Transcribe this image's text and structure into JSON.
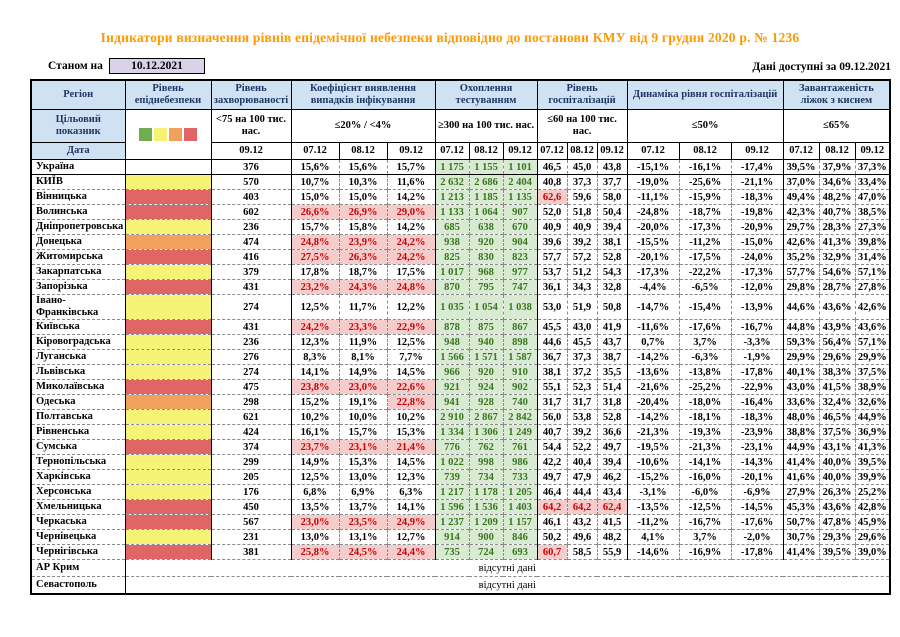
{
  "title": "Індикатори визначення рівнів епідемічної небезпеки відповідно до постанови КМУ від 9 грудня 2020 р. № 1236",
  "asof": {
    "label": "Станом на",
    "date": "10.12.2021"
  },
  "avail": {
    "label": "Дані доступні за",
    "date": "09.12.2021"
  },
  "header": {
    "region_label": "Регіон",
    "target_label": "Цільовий показник",
    "date_label": "Дата"
  },
  "legend": {
    "names": [
      "green-level",
      "yellow-level",
      "orange-level",
      "red-level"
    ],
    "colors": [
      "#6fad4e",
      "#f5f276",
      "#f2a15c",
      "#e06666"
    ]
  },
  "groups": [
    {
      "label": "Рівень епіднебезпеки"
    },
    {
      "label": "Рівень захворюваності",
      "target": "<75 на 100 тис. нас.",
      "dates": [
        "09.12"
      ]
    },
    {
      "label": "Коефіцієнт виявлення випадків інфікування",
      "target": "≤20% / <4%",
      "dates": [
        "07.12",
        "08.12",
        "09.12"
      ]
    },
    {
      "label": "Охоплення тестуванням",
      "target": "≥300 на 100 тис. нас.",
      "dates": [
        "07.12",
        "08.12",
        "09.12"
      ]
    },
    {
      "label": "Рівень госпіталізацій",
      "target": "≤60 на 100 тис. нас.",
      "dates": [
        "07.12",
        "08.12",
        "09.12"
      ]
    },
    {
      "label": "Динаміка рівня госпіталізацій",
      "target": "≤50%",
      "dates": [
        "07.12",
        "08.12",
        "09.12"
      ]
    },
    {
      "label": "Завантаженість ліжок з киснем",
      "target": "≤65%",
      "dates": [
        "07.12",
        "08.12",
        "09.12"
      ]
    }
  ],
  "rows": [
    {
      "name": "Україна",
      "level": "none",
      "incidence": "376",
      "detect": [
        "15,6%",
        "15,6%",
        "15,7%"
      ],
      "testing": [
        "1 175",
        "1 155",
        "1 101"
      ],
      "hosp": [
        "46,5",
        "45,0",
        "43,8"
      ],
      "dyn": [
        "-15,1%",
        "-16,1%",
        "-17,4%"
      ],
      "beds": [
        "39,5%",
        "37,9%",
        "37,3%"
      ]
    },
    {
      "name": "КИЇВ",
      "level": "yellow",
      "incidence": "570",
      "detect": [
        "10,7%",
        "10,3%",
        "11,6%"
      ],
      "testing": [
        "2 632",
        "2 686",
        "2 404"
      ],
      "hosp": [
        "40,8",
        "37,3",
        "37,7"
      ],
      "dyn": [
        "-19,0%",
        "-25,6%",
        "-21,1%"
      ],
      "beds": [
        "37,0%",
        "34,6%",
        "33,4%"
      ]
    },
    {
      "name": "Вінницька",
      "level": "red",
      "incidence": "403",
      "detect": [
        "15,0%",
        "15,0%",
        "14,2%"
      ],
      "testing": [
        "1 213",
        "1 185",
        "1 135"
      ],
      "hosp": [
        "62,6",
        "59,6",
        "58,0"
      ],
      "hosp_hl": [
        true,
        false,
        false
      ],
      "dyn": [
        "-11,1%",
        "-15,9%",
        "-18,3%"
      ],
      "beds": [
        "49,4%",
        "48,2%",
        "47,0%"
      ]
    },
    {
      "name": "Волинська",
      "level": "red",
      "incidence": "602",
      "detect": [
        "26,6%",
        "26,9%",
        "29,0%"
      ],
      "detect_hl": [
        true,
        true,
        true
      ],
      "testing": [
        "1 133",
        "1 064",
        "907"
      ],
      "hosp": [
        "52,0",
        "51,8",
        "50,4"
      ],
      "dyn": [
        "-24,8%",
        "-18,7%",
        "-19,8%"
      ],
      "beds": [
        "42,3%",
        "40,7%",
        "38,5%"
      ]
    },
    {
      "name": "Дніпропетровська",
      "level": "yellow",
      "incidence": "236",
      "detect": [
        "15,7%",
        "15,8%",
        "14,2%"
      ],
      "testing": [
        "685",
        "638",
        "670"
      ],
      "hosp": [
        "40,9",
        "40,9",
        "39,4"
      ],
      "dyn": [
        "-20,0%",
        "-17,3%",
        "-20,9%"
      ],
      "beds": [
        "29,7%",
        "28,3%",
        "27,3%"
      ]
    },
    {
      "name": "Донецька",
      "level": "orange",
      "incidence": "474",
      "detect": [
        "24,8%",
        "23,9%",
        "24,2%"
      ],
      "detect_hl": [
        true,
        true,
        true
      ],
      "testing": [
        "938",
        "920",
        "904"
      ],
      "hosp": [
        "39,6",
        "39,2",
        "38,1"
      ],
      "dyn": [
        "-15,5%",
        "-11,2%",
        "-15,0%"
      ],
      "beds": [
        "42,6%",
        "41,3%",
        "39,8%"
      ]
    },
    {
      "name": "Житомирська",
      "level": "red",
      "incidence": "416",
      "detect": [
        "27,5%",
        "26,3%",
        "24,2%"
      ],
      "detect_hl": [
        true,
        true,
        true
      ],
      "testing": [
        "825",
        "830",
        "823"
      ],
      "hosp": [
        "57,7",
        "57,2",
        "52,8"
      ],
      "dyn": [
        "-20,1%",
        "-17,5%",
        "-24,0%"
      ],
      "beds": [
        "35,2%",
        "32,9%",
        "31,4%"
      ]
    },
    {
      "name": "Закарпатська",
      "level": "yellow",
      "incidence": "379",
      "detect": [
        "17,8%",
        "18,7%",
        "17,5%"
      ],
      "testing": [
        "1 017",
        "968",
        "977"
      ],
      "hosp": [
        "53,7",
        "51,2",
        "54,3"
      ],
      "dyn": [
        "-17,3%",
        "-22,2%",
        "-17,3%"
      ],
      "beds": [
        "57,7%",
        "54,6%",
        "57,1%"
      ]
    },
    {
      "name": "Запорізька",
      "level": "red",
      "incidence": "431",
      "detect": [
        "23,2%",
        "24,3%",
        "24,8%"
      ],
      "detect_hl": [
        true,
        true,
        true
      ],
      "testing": [
        "870",
        "795",
        "747"
      ],
      "hosp": [
        "36,1",
        "34,3",
        "32,8"
      ],
      "dyn": [
        "-4,4%",
        "-6,5%",
        "-12,0%"
      ],
      "beds": [
        "29,8%",
        "28,7%",
        "27,8%"
      ]
    },
    {
      "name": "Івано-Франківська",
      "level": "yellow",
      "incidence": "274",
      "detect": [
        "12,5%",
        "11,7%",
        "12,2%"
      ],
      "testing": [
        "1 035",
        "1 054",
        "1 038"
      ],
      "hosp": [
        "53,0",
        "51,9",
        "50,8"
      ],
      "dyn": [
        "-14,7%",
        "-15,4%",
        "-13,9%"
      ],
      "beds": [
        "44,6%",
        "43,6%",
        "42,6%"
      ]
    },
    {
      "name": "Київська",
      "level": "red",
      "incidence": "431",
      "detect": [
        "24,2%",
        "23,3%",
        "22,9%"
      ],
      "detect_hl": [
        true,
        true,
        true
      ],
      "testing": [
        "878",
        "875",
        "867"
      ],
      "hosp": [
        "45,5",
        "43,0",
        "41,9"
      ],
      "dyn": [
        "-11,6%",
        "-17,6%",
        "-16,7%"
      ],
      "beds": [
        "44,8%",
        "43,9%",
        "43,6%"
      ]
    },
    {
      "name": "Кіровоградська",
      "level": "yellow",
      "incidence": "236",
      "detect": [
        "12,3%",
        "11,9%",
        "12,5%"
      ],
      "testing": [
        "948",
        "940",
        "898"
      ],
      "hosp": [
        "44,6",
        "45,5",
        "43,7"
      ],
      "dyn": [
        "0,7%",
        "3,7%",
        "-3,3%"
      ],
      "beds": [
        "59,3%",
        "56,4%",
        "57,1%"
      ]
    },
    {
      "name": "Луганська",
      "level": "yellow",
      "incidence": "276",
      "detect": [
        "8,3%",
        "8,1%",
        "7,7%"
      ],
      "testing": [
        "1 566",
        "1 571",
        "1 587"
      ],
      "hosp": [
        "36,7",
        "37,3",
        "38,7"
      ],
      "dyn": [
        "-14,2%",
        "-6,3%",
        "-1,9%"
      ],
      "beds": [
        "29,9%",
        "29,6%",
        "29,9%"
      ]
    },
    {
      "name": "Львівська",
      "level": "yellow",
      "incidence": "274",
      "detect": [
        "14,1%",
        "14,9%",
        "14,5%"
      ],
      "testing": [
        "966",
        "920",
        "910"
      ],
      "hosp": [
        "38,1",
        "37,2",
        "35,5"
      ],
      "dyn": [
        "-13,6%",
        "-13,8%",
        "-17,8%"
      ],
      "beds": [
        "40,1%",
        "38,3%",
        "37,5%"
      ]
    },
    {
      "name": "Миколаївська",
      "level": "red",
      "incidence": "475",
      "detect": [
        "23,8%",
        "23,0%",
        "22,6%"
      ],
      "detect_hl": [
        true,
        true,
        true
      ],
      "testing": [
        "921",
        "924",
        "902"
      ],
      "hosp": [
        "55,1",
        "52,3",
        "51,4"
      ],
      "dyn": [
        "-21,6%",
        "-25,2%",
        "-22,9%"
      ],
      "beds": [
        "43,0%",
        "41,5%",
        "38,9%"
      ]
    },
    {
      "name": "Одеська",
      "level": "orange",
      "incidence": "298",
      "detect": [
        "15,2%",
        "19,1%",
        "22,8%"
      ],
      "detect_hl": [
        false,
        false,
        true
      ],
      "testing": [
        "941",
        "928",
        "740"
      ],
      "hosp": [
        "31,7",
        "31,7",
        "31,8"
      ],
      "dyn": [
        "-20,4%",
        "-18,0%",
        "-16,4%"
      ],
      "beds": [
        "33,6%",
        "32,4%",
        "32,6%"
      ]
    },
    {
      "name": "Полтавська",
      "level": "yellow",
      "incidence": "621",
      "detect": [
        "10,2%",
        "10,0%",
        "10,2%"
      ],
      "testing": [
        "2 910",
        "2 867",
        "2 842"
      ],
      "hosp": [
        "56,0",
        "53,8",
        "52,8"
      ],
      "dyn": [
        "-14,2%",
        "-18,1%",
        "-18,3%"
      ],
      "beds": [
        "48,0%",
        "46,5%",
        "44,9%"
      ]
    },
    {
      "name": "Рівненська",
      "level": "yellow",
      "incidence": "424",
      "detect": [
        "16,1%",
        "15,7%",
        "15,3%"
      ],
      "testing": [
        "1 334",
        "1 306",
        "1 249"
      ],
      "hosp": [
        "40,7",
        "39,2",
        "36,6"
      ],
      "dyn": [
        "-21,3%",
        "-19,3%",
        "-23,9%"
      ],
      "beds": [
        "38,8%",
        "37,5%",
        "36,9%"
      ]
    },
    {
      "name": "Сумська",
      "level": "red",
      "incidence": "374",
      "detect": [
        "23,7%",
        "23,1%",
        "21,4%"
      ],
      "detect_hl": [
        true,
        true,
        true
      ],
      "testing": [
        "776",
        "762",
        "761"
      ],
      "hosp": [
        "54,4",
        "52,2",
        "49,7"
      ],
      "dyn": [
        "-19,5%",
        "-21,3%",
        "-23,1%"
      ],
      "beds": [
        "44,9%",
        "43,1%",
        "41,3%"
      ]
    },
    {
      "name": "Тернопільська",
      "level": "yellow",
      "incidence": "299",
      "detect": [
        "14,9%",
        "15,3%",
        "14,5%"
      ],
      "testing": [
        "1 022",
        "998",
        "986"
      ],
      "hosp": [
        "42,2",
        "40,4",
        "39,4"
      ],
      "dyn": [
        "-10,6%",
        "-14,1%",
        "-14,3%"
      ],
      "beds": [
        "41,4%",
        "40,0%",
        "39,5%"
      ]
    },
    {
      "name": "Харківська",
      "level": "yellow",
      "incidence": "205",
      "detect": [
        "12,5%",
        "13,0%",
        "12,3%"
      ],
      "testing": [
        "739",
        "734",
        "733"
      ],
      "hosp": [
        "49,7",
        "47,9",
        "46,2"
      ],
      "dyn": [
        "-15,2%",
        "-16,0%",
        "-20,1%"
      ],
      "beds": [
        "41,6%",
        "40,0%",
        "39,9%"
      ]
    },
    {
      "name": "Херсонська",
      "level": "yellow",
      "incidence": "176",
      "detect": [
        "6,8%",
        "6,9%",
        "6,3%"
      ],
      "testing": [
        "1 217",
        "1 178",
        "1 205"
      ],
      "hosp": [
        "46,4",
        "44,4",
        "43,4"
      ],
      "dyn": [
        "-3,1%",
        "-6,0%",
        "-6,9%"
      ],
      "beds": [
        "27,9%",
        "26,3%",
        "25,2%"
      ]
    },
    {
      "name": "Хмельницька",
      "level": "red",
      "incidence": "450",
      "detect": [
        "13,5%",
        "13,7%",
        "14,1%"
      ],
      "testing": [
        "1 596",
        "1 536",
        "1 403"
      ],
      "hosp": [
        "64,2",
        "64,2",
        "62,4"
      ],
      "hosp_hl": [
        true,
        true,
        true
      ],
      "dyn": [
        "-13,5%",
        "-12,5%",
        "-14,5%"
      ],
      "beds": [
        "45,3%",
        "43,6%",
        "42,8%"
      ]
    },
    {
      "name": "Черкаська",
      "level": "red",
      "incidence": "567",
      "detect": [
        "23,0%",
        "23,5%",
        "24,9%"
      ],
      "detect_hl": [
        true,
        true,
        true
      ],
      "testing": [
        "1 237",
        "1 209",
        "1 157"
      ],
      "hosp": [
        "46,1",
        "43,2",
        "41,5"
      ],
      "dyn": [
        "-11,2%",
        "-16,7%",
        "-17,6%"
      ],
      "beds": [
        "50,7%",
        "47,8%",
        "45,9%"
      ]
    },
    {
      "name": "Чернівецька",
      "level": "yellow",
      "incidence": "231",
      "detect": [
        "13,0%",
        "13,1%",
        "12,7%"
      ],
      "testing": [
        "914",
        "900",
        "846"
      ],
      "hosp": [
        "50,2",
        "49,6",
        "48,2"
      ],
      "dyn": [
        "4,1%",
        "3,7%",
        "-2,0%"
      ],
      "beds": [
        "30,7%",
        "29,3%",
        "29,6%"
      ]
    },
    {
      "name": "Чернігівська",
      "level": "red",
      "incidence": "381",
      "detect": [
        "25,8%",
        "24,5%",
        "24,4%"
      ],
      "detect_hl": [
        true,
        true,
        true
      ],
      "testing": [
        "735",
        "724",
        "693"
      ],
      "hosp": [
        "60,7",
        "58,5",
        "55,9"
      ],
      "hosp_hl": [
        true,
        false,
        false
      ],
      "dyn": [
        "-14,6%",
        "-16,9%",
        "-17,8%"
      ],
      "beds": [
        "41,4%",
        "39,5%",
        "39,0%"
      ]
    }
  ],
  "no_data_rows": [
    {
      "name": "АР Крим",
      "text": "відсутні дані"
    },
    {
      "name": "Севастополь",
      "text": "відсутні дані"
    }
  ]
}
